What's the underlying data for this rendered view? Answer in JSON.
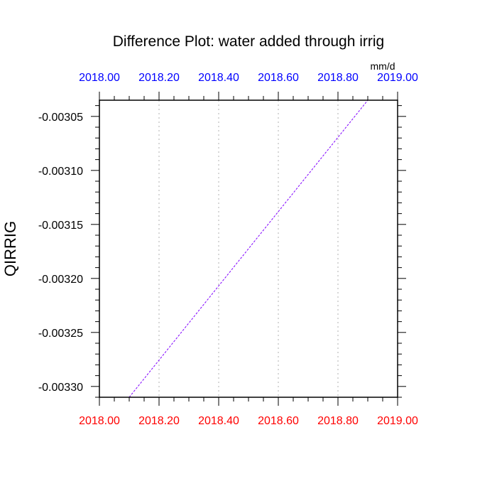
{
  "chart_data": {
    "type": "line",
    "title": "Difference Plot: water added through irrig",
    "ylabel": "QIRRIG",
    "units": "mm/d",
    "xlim": [
      2018.0,
      2019.0
    ],
    "ylim": [
      -0.00331,
      -0.003035
    ],
    "x_ticks": [
      2018.0,
      2018.2,
      2018.4,
      2018.6,
      2018.8,
      2019.0
    ],
    "x_tick_labels": [
      "2018.00",
      "2018.20",
      "2018.40",
      "2018.60",
      "2018.80",
      "2019.00"
    ],
    "y_ticks": [
      -0.00305,
      -0.0031,
      -0.00315,
      -0.0032,
      -0.00325,
      -0.0033
    ],
    "y_tick_labels": [
      "-0.00305",
      "-0.00310",
      "-0.00315",
      "-0.00320",
      "-0.00325",
      "-0.00330"
    ],
    "grid": "vertical dotted",
    "series": [
      {
        "x": [
          2018.1,
          2018.9
        ],
        "y": [
          -0.00331,
          -0.003035
        ],
        "color": "#8000ff",
        "style": "dashed"
      }
    ],
    "colors": {
      "top_axis_labels": "#0000ff",
      "bottom_axis_labels": "#ff0000",
      "grid": "#b0b0b0",
      "line": "#8000ff"
    }
  }
}
